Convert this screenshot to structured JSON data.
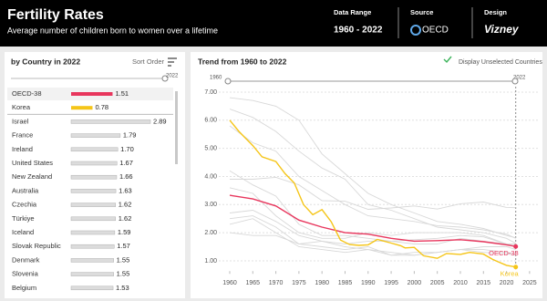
{
  "header": {
    "title": "Fertility Rates",
    "subtitle": "Average number of children born to women over a lifetime",
    "data_range_label": "Data Range",
    "data_range": "1960 - 2022",
    "source_label": "Source",
    "source": "OECD",
    "design_label": "Design",
    "design": "Vizney"
  },
  "chart_data": [
    {
      "type": "bar",
      "title": "by Country in 2022",
      "sort_label": "Sort Order",
      "slider_label": "2022",
      "categories": [
        "OECD-38",
        "Korea",
        "Israel",
        "France",
        "Ireland",
        "United States",
        "New Zealand",
        "Australia",
        "Czechia",
        "Türkiye",
        "Iceland",
        "Slovak Republic",
        "Denmark",
        "Slovenia",
        "Belgium"
      ],
      "values": [
        1.51,
        0.78,
        2.89,
        1.79,
        1.7,
        1.67,
        1.66,
        1.63,
        1.62,
        1.62,
        1.59,
        1.57,
        1.55,
        1.55,
        1.53
      ],
      "value_labels": [
        "1.51",
        "0.78",
        "2.89",
        "1.79",
        "1.70",
        "1.67",
        "1.66",
        "1.63",
        "1.62",
        "1.62",
        "1.59",
        "1.57",
        "1.55",
        "1.55",
        "1.53"
      ],
      "colors": [
        "#e8365d",
        "#f5c518",
        "#dcdcdc",
        "#dcdcdc",
        "#dcdcdc",
        "#dcdcdc",
        "#dcdcdc",
        "#dcdcdc",
        "#dcdcdc",
        "#dcdcdc",
        "#dcdcdc",
        "#dcdcdc",
        "#dcdcdc",
        "#dcdcdc",
        "#dcdcdc"
      ]
    },
    {
      "type": "line",
      "title": "Trend from 1960 to 2022",
      "toggle_label": "Display Unselected Countries",
      "slider_start": "1960",
      "slider_end": "2022",
      "xlim": [
        1957,
        2027
      ],
      "xticks": [
        1960,
        1965,
        1970,
        1975,
        1980,
        1985,
        1990,
        1995,
        2000,
        2005,
        2010,
        2015,
        2020,
        2025
      ],
      "ylim": [
        0.7,
        7.1
      ],
      "yticks": [
        {
          "value": 1,
          "label": "1.00"
        },
        {
          "value": 2,
          "label": "2.00"
        },
        {
          "value": 3,
          "label": "3.00"
        },
        {
          "value": 4,
          "label": "4.00"
        },
        {
          "value": 5,
          "label": "5.00"
        },
        {
          "value": 6,
          "label": "6.00"
        },
        {
          "value": 7,
          "label": "7.00"
        }
      ],
      "grid": true,
      "marker_year": 2022,
      "background_series": [
        {
          "color": "#d8d8d8",
          "x": [
            1960,
            1965,
            1970,
            1975,
            1980,
            1985,
            1990,
            1995,
            2000,
            2005,
            2010,
            2015,
            2020,
            2022
          ],
          "values": [
            3.9,
            3.9,
            3.97,
            3.7,
            3.14,
            3.12,
            2.83,
            2.88,
            2.95,
            2.84,
            3.03,
            3.09,
            2.9,
            2.89
          ]
        },
        {
          "color": "#d8d8d8",
          "x": [
            1960,
            1965,
            1970,
            1975,
            1980,
            1985,
            1990,
            1995,
            2000,
            2005,
            2010,
            2015,
            2020,
            2022
          ],
          "values": [
            6.8,
            6.7,
            6.5,
            6.0,
            4.8,
            4.1,
            3.4,
            3.0,
            2.7,
            2.4,
            2.3,
            2.15,
            1.9,
            1.82
          ]
        },
        {
          "color": "#d8d8d8",
          "x": [
            1960,
            1965,
            1970,
            1975,
            1980,
            1985,
            1990,
            1995,
            2000,
            2005,
            2010,
            2015,
            2020,
            2022
          ],
          "values": [
            6.4,
            6.1,
            5.6,
            4.9,
            4.3,
            3.9,
            3.0,
            2.8,
            2.5,
            2.2,
            2.1,
            2.0,
            1.8,
            1.62
          ]
        },
        {
          "color": "#d8d8d8",
          "x": [
            1960,
            1965,
            1970,
            1975,
            1980,
            1985,
            1990,
            1995,
            2000,
            2005,
            2010,
            2015,
            2020,
            2022
          ],
          "values": [
            2.7,
            2.8,
            2.4,
            1.9,
            1.7,
            1.6,
            1.7,
            1.7,
            1.6,
            1.6,
            1.8,
            1.7,
            1.6,
            1.5
          ]
        },
        {
          "color": "#d8d8d8",
          "x": [
            1960,
            1965,
            1970,
            1975,
            1980,
            1985,
            1990,
            1995,
            2000,
            2005,
            2010,
            2015,
            2020,
            2022
          ],
          "values": [
            2.5,
            2.6,
            2.2,
            1.6,
            1.5,
            1.4,
            1.5,
            1.2,
            1.2,
            1.3,
            1.4,
            1.4,
            1.3,
            1.25
          ]
        },
        {
          "color": "#d8d8d8",
          "x": [
            1960,
            1965,
            1970,
            1975,
            1980,
            1985,
            1990,
            1995,
            2000,
            2005,
            2010,
            2015,
            2020,
            2022
          ],
          "values": [
            3.6,
            3.4,
            2.6,
            2.0,
            1.8,
            1.8,
            2.0,
            1.9,
            2.0,
            2.0,
            2.0,
            1.9,
            1.6,
            1.6
          ]
        },
        {
          "color": "#d8d8d8",
          "x": [
            1960,
            1965,
            1970,
            1975,
            1980,
            1985,
            1990,
            1995,
            2000,
            2005,
            2010,
            2015,
            2020,
            2022
          ],
          "values": [
            2.3,
            2.5,
            2.0,
            1.5,
            1.4,
            1.3,
            1.4,
            1.2,
            1.3,
            1.3,
            1.4,
            1.5,
            1.5,
            1.4
          ]
        },
        {
          "color": "#d8d8d8",
          "x": [
            1960,
            1965,
            1970,
            1975,
            1980,
            1985,
            1990,
            1995,
            2000,
            2005,
            2010,
            2015,
            2020,
            2022
          ],
          "values": [
            4.2,
            3.7,
            3.3,
            2.3,
            1.9,
            1.9,
            1.8,
            1.7,
            1.75,
            1.8,
            1.9,
            1.85,
            1.6,
            1.58
          ]
        },
        {
          "color": "#d8d8d8",
          "x": [
            1960,
            1965,
            1970,
            1975,
            1980,
            1985,
            1990,
            1995,
            2000,
            2005,
            2010,
            2015,
            2020,
            2022
          ],
          "values": [
            5.8,
            5.2,
            4.9,
            4.0,
            3.5,
            3.0,
            2.6,
            2.5,
            2.4,
            2.25,
            2.2,
            2.1,
            1.95,
            1.8
          ]
        },
        {
          "color": "#d8d8d8",
          "x": [
            1960,
            1965,
            1970,
            1975,
            1980,
            1985,
            1990,
            1995,
            2000,
            2005,
            2010,
            2015,
            2020,
            2022
          ],
          "values": [
            2.0,
            1.9,
            1.9,
            1.6,
            1.7,
            1.5,
            1.4,
            1.3,
            1.2,
            1.3,
            1.4,
            1.3,
            1.25,
            1.2
          ]
        }
      ],
      "series": [
        {
          "name": "OECD-38",
          "color": "#e8365d",
          "x": [
            1960,
            1965,
            1970,
            1975,
            1980,
            1985,
            1990,
            1995,
            2000,
            2005,
            2010,
            2015,
            2020,
            2022
          ],
          "values": [
            3.33,
            3.2,
            2.95,
            2.45,
            2.2,
            2.0,
            1.95,
            1.8,
            1.7,
            1.72,
            1.75,
            1.68,
            1.57,
            1.51
          ]
        },
        {
          "name": "Korea",
          "color": "#f5c518",
          "x": [
            1960,
            1962,
            1965,
            1967,
            1970,
            1972,
            1974,
            1976,
            1978,
            1980,
            1982,
            1984,
            1986,
            1988,
            1990,
            1992,
            1995,
            1997,
            1998,
            2000,
            2002,
            2005,
            2007,
            2010,
            2012,
            2015,
            2017,
            2018,
            2020,
            2022
          ],
          "values": [
            6.0,
            5.6,
            5.1,
            4.7,
            4.53,
            4.1,
            3.77,
            3.0,
            2.64,
            2.82,
            2.39,
            1.74,
            1.58,
            1.55,
            1.57,
            1.76,
            1.63,
            1.54,
            1.46,
            1.48,
            1.18,
            1.09,
            1.26,
            1.23,
            1.3,
            1.24,
            1.05,
            0.98,
            0.84,
            0.78
          ]
        }
      ]
    }
  ]
}
